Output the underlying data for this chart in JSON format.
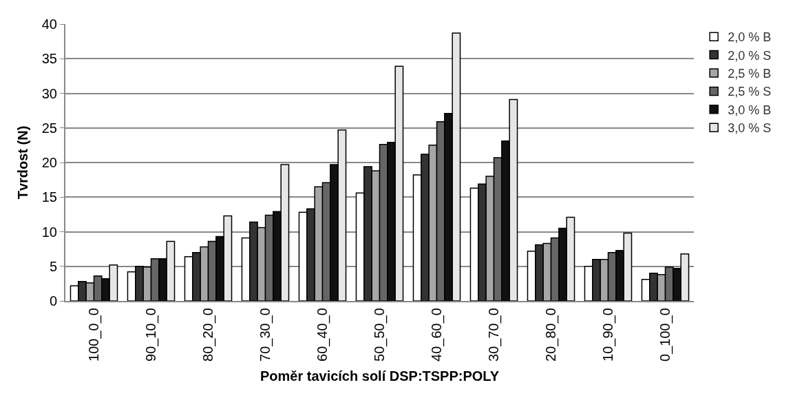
{
  "chart_data": {
    "type": "bar",
    "xlabel": "Poměr tavicích solí DSP:TSPP:POLY",
    "ylabel": "Tvrdost (N)",
    "categories": [
      "100_0_0",
      "90_10_0",
      "80_20_0",
      "70_30_0",
      "60_40_0",
      "50_50_0",
      "40_60_0",
      "30_70_0",
      "20_80_0",
      "10_90_0",
      "0_100_0"
    ],
    "series": [
      {
        "name": "2,0 % B",
        "color": "#ffffff",
        "values": [
          2.2,
          4.2,
          6.4,
          9.1,
          12.8,
          15.6,
          18.2,
          16.3,
          7.2,
          5.0,
          3.1
        ]
      },
      {
        "name": "2,0 % S",
        "color": "#333333",
        "values": [
          2.8,
          5.0,
          7.0,
          11.4,
          13.3,
          19.4,
          21.2,
          16.9,
          8.1,
          6.0,
          4.0
        ]
      },
      {
        "name": "2,5 % B",
        "color": "#a6a6a6",
        "values": [
          2.6,
          4.9,
          7.8,
          10.6,
          16.5,
          18.8,
          22.5,
          18.0,
          8.3,
          6.0,
          3.8
        ]
      },
      {
        "name": "2,5 % S",
        "color": "#666666",
        "values": [
          3.6,
          6.1,
          8.6,
          12.4,
          17.1,
          22.6,
          25.9,
          20.7,
          9.1,
          7.0,
          4.9
        ]
      },
      {
        "name": "3,0 % B",
        "color": "#111111",
        "values": [
          3.2,
          6.1,
          9.3,
          12.9,
          19.7,
          22.9,
          27.1,
          23.1,
          10.5,
          7.3,
          4.7
        ]
      },
      {
        "name": "3,0 % S",
        "color": "#e6e6e6",
        "values": [
          5.2,
          8.6,
          12.3,
          19.7,
          24.7,
          33.9,
          38.7,
          29.1,
          12.1,
          9.8,
          6.8
        ]
      }
    ],
    "ylim": [
      0,
      40
    ],
    "yticks": [
      0,
      5,
      10,
      15,
      20,
      25,
      30,
      35,
      40
    ],
    "grid": "y",
    "legend": "top right"
  }
}
